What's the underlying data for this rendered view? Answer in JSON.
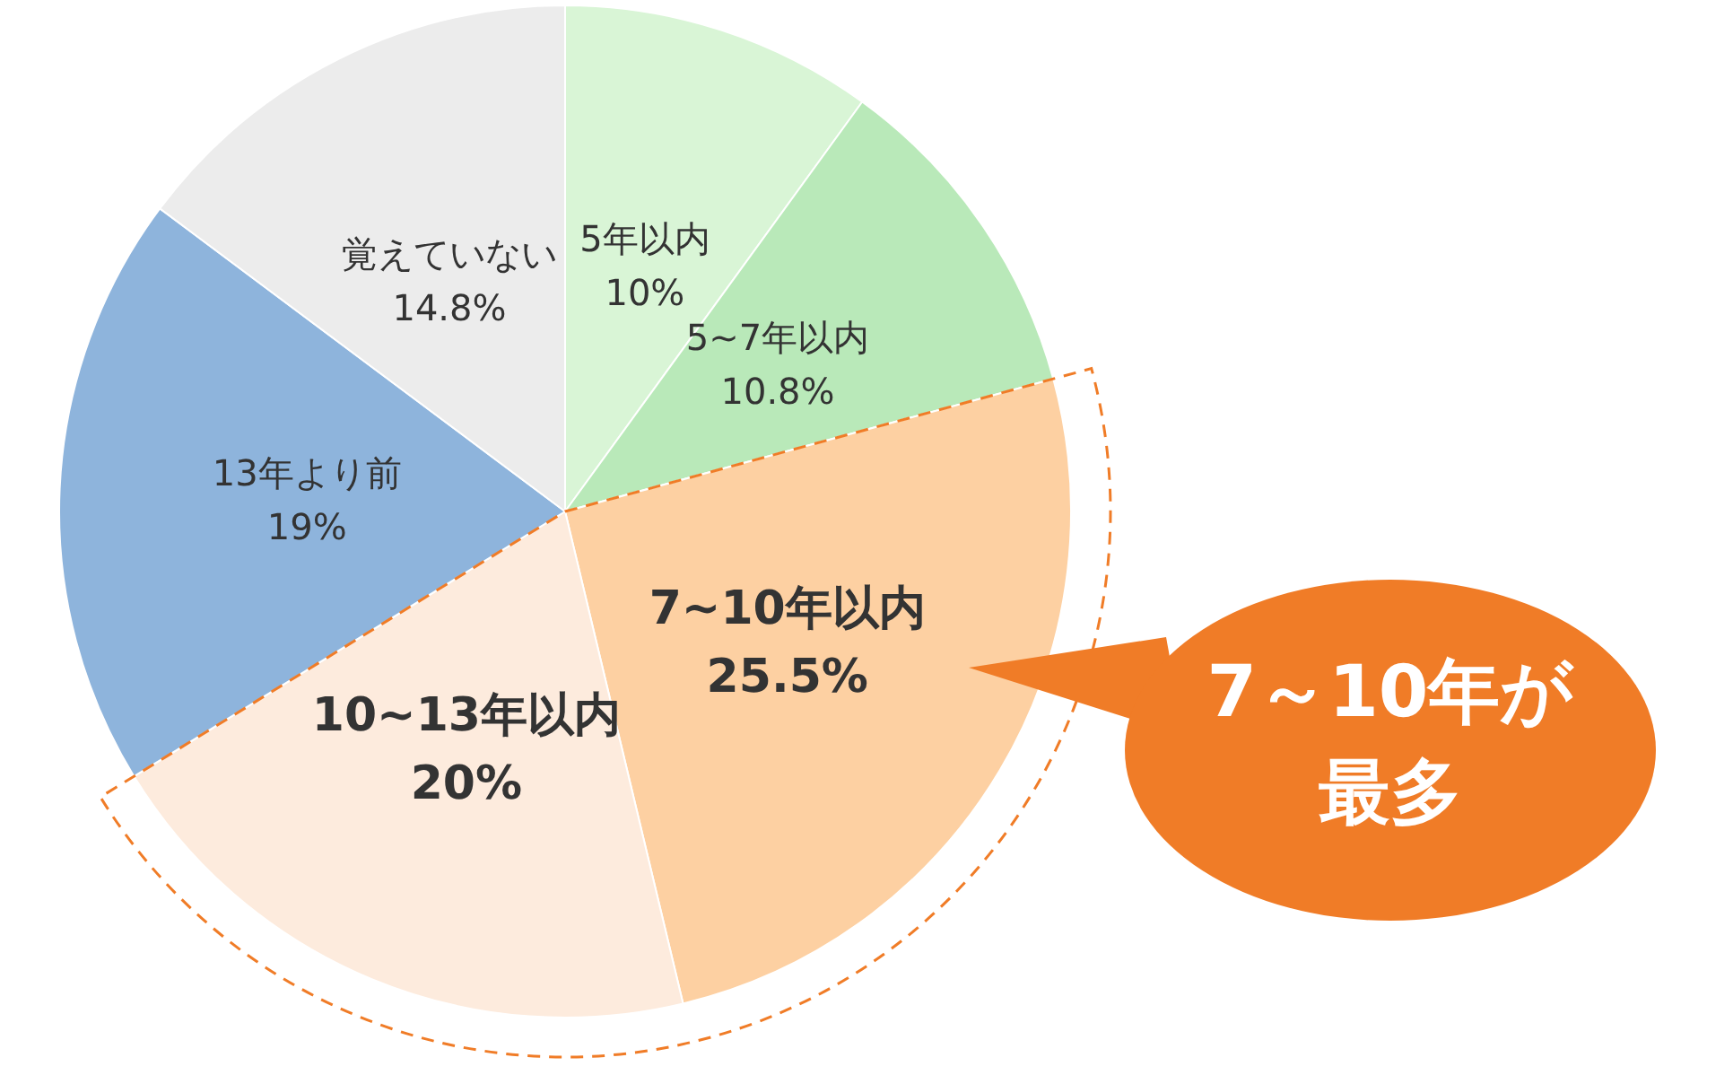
{
  "chart_data": {
    "type": "pie",
    "categories": [
      "5年以内",
      "5~7年以内",
      "7~10年以内",
      "10~13年以内",
      "13年より前",
      "覚えていない"
    ],
    "values": [
      10,
      10.8,
      25.5,
      20,
      19,
      14.8
    ],
    "colors": [
      "#d9f5d6",
      "#b9e9b9",
      "#fdd0a2",
      "#fdebdd",
      "#8eb4dc",
      "#ececec"
    ],
    "value_labels": [
      "10%",
      "10.8%",
      "25.5%",
      "20%",
      "19%",
      "14.8%"
    ],
    "legend": false,
    "annotations": [
      "7～10年が最多"
    ]
  }
}
